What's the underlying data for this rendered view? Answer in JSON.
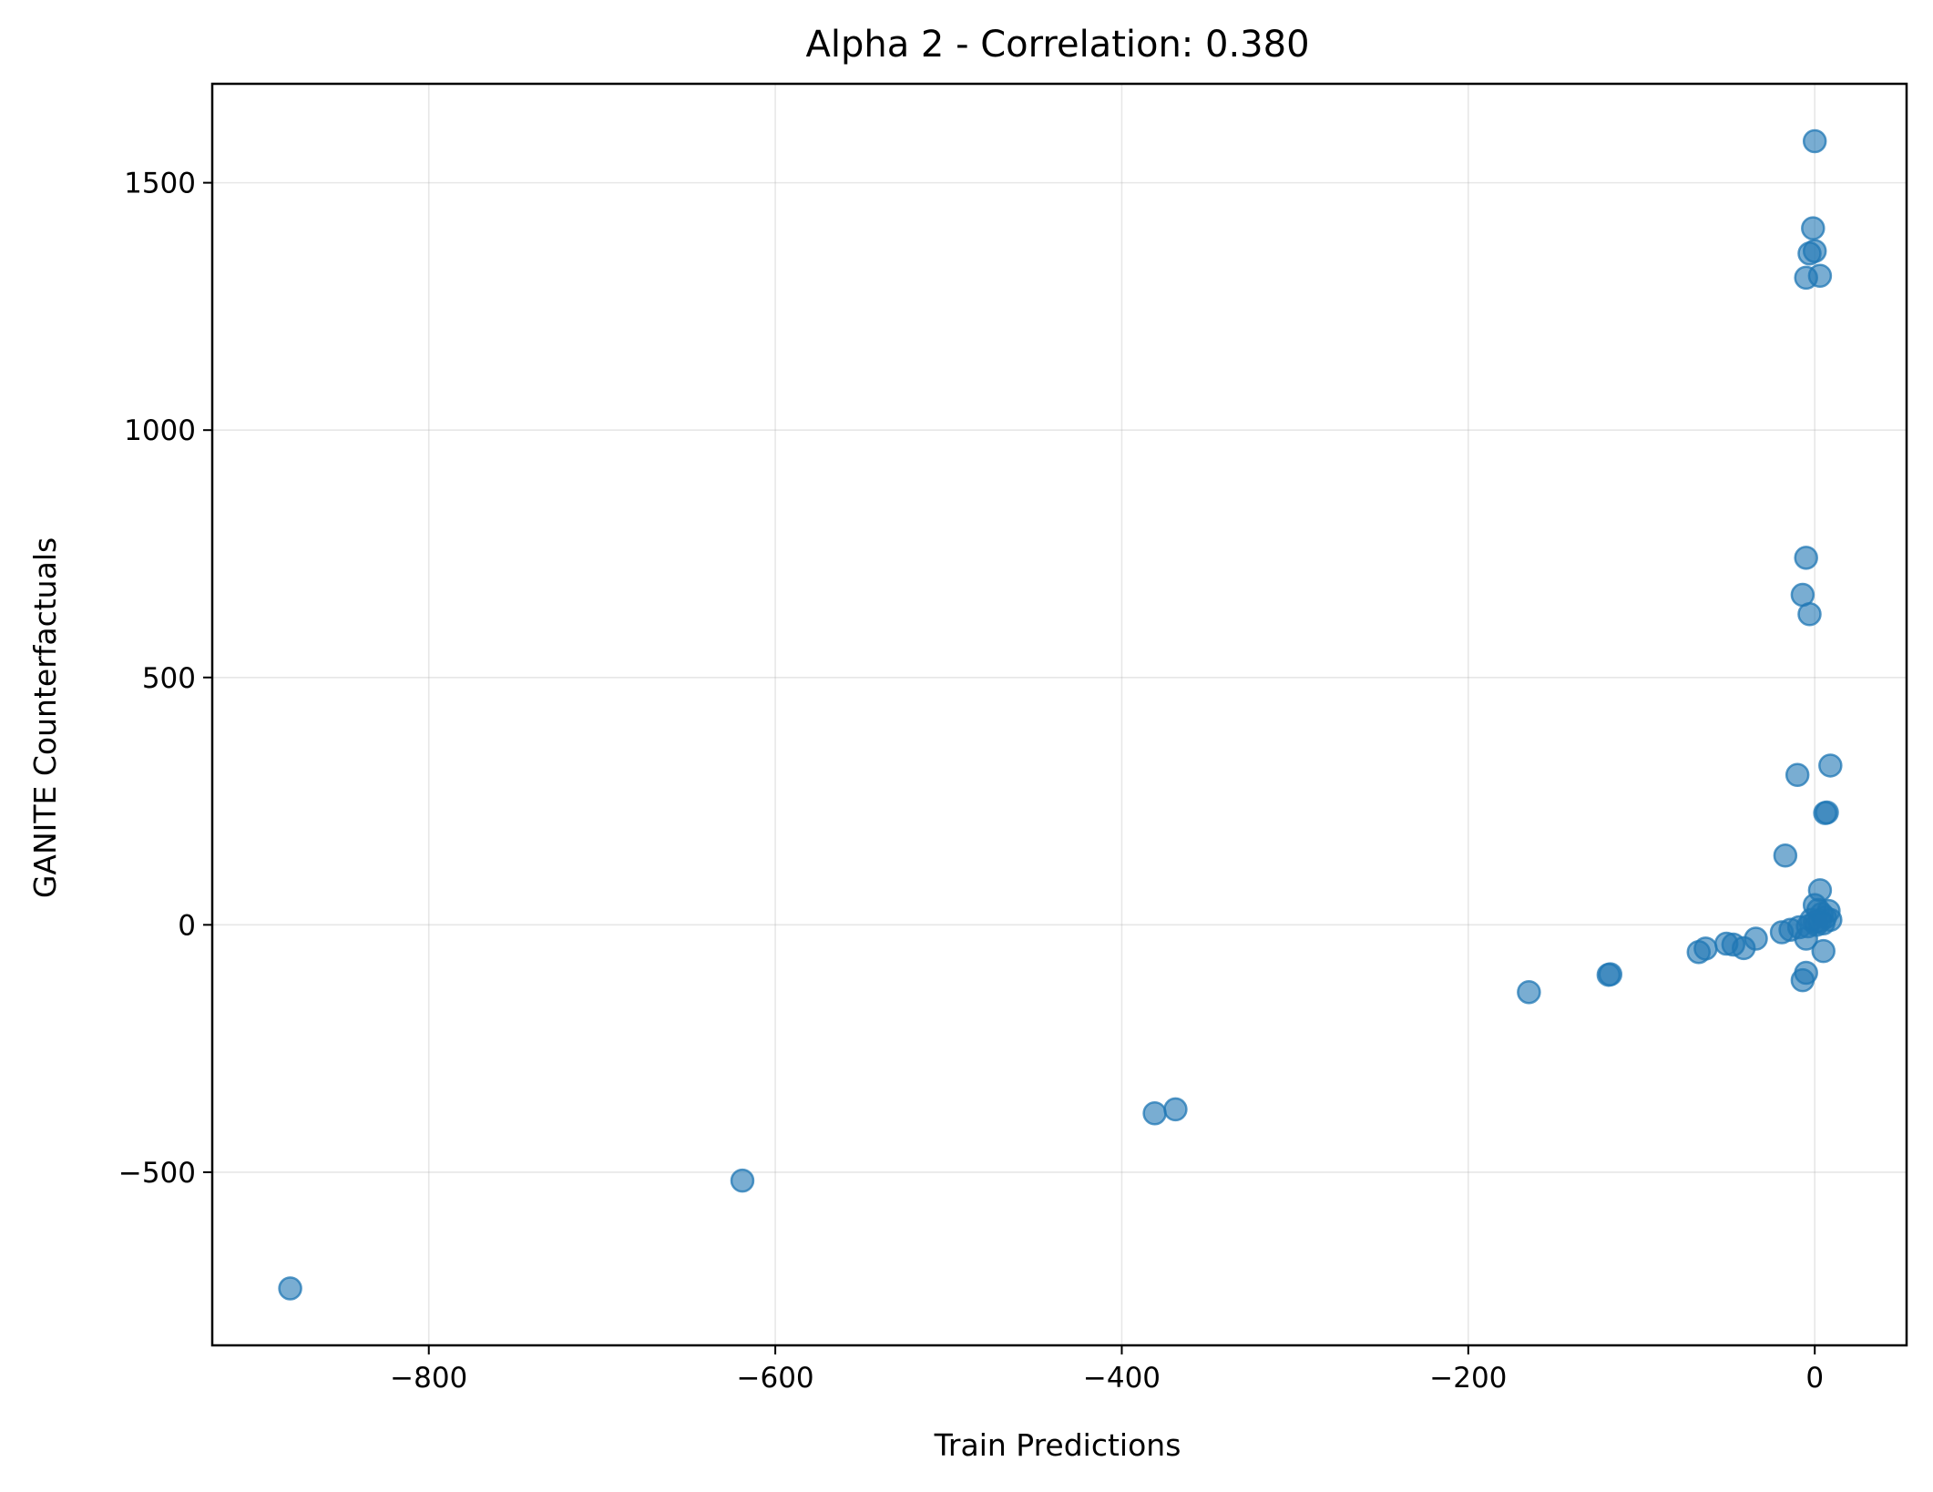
{
  "chart_data": {
    "type": "scatter",
    "title": "Alpha 2 - Correlation: 0.380",
    "xlabel": "Train Predictions",
    "ylabel": "GANITE Counterfactuals",
    "xlim": [
      -925,
      53
    ],
    "ylim": [
      -850,
      1700
    ],
    "xticks": [
      -800,
      -600,
      -400,
      -200,
      0
    ],
    "xtick_labels": [
      "−800",
      "−600",
      "−400",
      "−200",
      "0"
    ],
    "yticks": [
      -500,
      0,
      500,
      1000,
      1500
    ],
    "ytick_labels": [
      "−500",
      "0",
      "500",
      "1000",
      "1500"
    ],
    "grid": true,
    "marker_color": "#1f77b4",
    "marker_alpha": 0.6,
    "points": [
      {
        "x": 0,
        "y": 1584
      },
      {
        "x": -1,
        "y": 1408
      },
      {
        "x": -3,
        "y": 1357
      },
      {
        "x": 0,
        "y": 1362
      },
      {
        "x": -5,
        "y": 1308
      },
      {
        "x": 3,
        "y": 1312
      },
      {
        "x": -5,
        "y": 742
      },
      {
        "x": -7,
        "y": 667
      },
      {
        "x": -3,
        "y": 628
      },
      {
        "x": 9,
        "y": 322
      },
      {
        "x": -10,
        "y": 303
      },
      {
        "x": 6,
        "y": 226
      },
      {
        "x": 7,
        "y": 227
      },
      {
        "x": -17,
        "y": 140
      },
      {
        "x": 3,
        "y": 70
      },
      {
        "x": 0,
        "y": 40
      },
      {
        "x": 2,
        "y": 30
      },
      {
        "x": 8,
        "y": 28
      },
      {
        "x": 4,
        "y": 22
      },
      {
        "x": 6,
        "y": 15
      },
      {
        "x": 9,
        "y": 10
      },
      {
        "x": 3,
        "y": 8
      },
      {
        "x": 0,
        "y": 5
      },
      {
        "x": -2,
        "y": 10
      },
      {
        "x": 1,
        "y": 0
      },
      {
        "x": -4,
        "y": -3
      },
      {
        "x": 5,
        "y": 3
      },
      {
        "x": -9,
        "y": -5
      },
      {
        "x": -14,
        "y": -10
      },
      {
        "x": -19,
        "y": -15
      },
      {
        "x": -5,
        "y": -28
      },
      {
        "x": 5,
        "y": -53
      },
      {
        "x": -5,
        "y": -97
      },
      {
        "x": -7,
        "y": -112
      },
      {
        "x": -34,
        "y": -28
      },
      {
        "x": -41,
        "y": -47
      },
      {
        "x": -47,
        "y": -40
      },
      {
        "x": -51,
        "y": -38
      },
      {
        "x": -63,
        "y": -48
      },
      {
        "x": -67,
        "y": -55
      },
      {
        "x": -118,
        "y": -100
      },
      {
        "x": -119,
        "y": -101
      },
      {
        "x": -165,
        "y": -136
      },
      {
        "x": -369,
        "y": -373
      },
      {
        "x": -381,
        "y": -381
      },
      {
        "x": -619,
        "y": -517
      },
      {
        "x": -880,
        "y": -735
      }
    ]
  }
}
